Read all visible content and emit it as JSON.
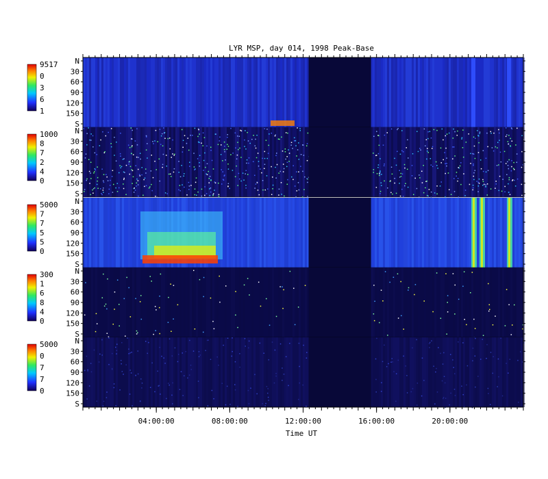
{
  "chart_data": {
    "type": "heatmap",
    "title": "LYR MSP, day 014, 1998 Peak-Base",
    "xlabel": "Time UT",
    "x_ticks": [
      "04:00:00",
      "08:00:00",
      "12:00:00",
      "16:00:00",
      "20:00:00"
    ],
    "x_tick_hours": [
      4,
      8,
      12,
      16,
      20
    ],
    "xlim_hours": [
      0,
      24
    ],
    "data_gap_hours": [
      12.3,
      15.7
    ],
    "y_ticks": [
      "N",
      "30",
      "60",
      "90",
      "120",
      "150",
      "S"
    ],
    "y_tick_values": [
      0,
      30,
      60,
      90,
      120,
      150,
      180
    ],
    "ylim": [
      0,
      180
    ],
    "panels": [
      {
        "colorbar_max": "9517",
        "colorbar_min": "1",
        "colorbar_mid": [
          "0",
          "3",
          "6"
        ],
        "intensity": "medium"
      },
      {
        "colorbar_max": "1000",
        "colorbar_min": "0",
        "colorbar_mid": [
          "8",
          "7",
          "2",
          "4"
        ],
        "intensity": "noisy"
      },
      {
        "colorbar_max": "5000",
        "colorbar_min": "0",
        "colorbar_mid": [
          "7",
          "7",
          "5",
          "5"
        ],
        "intensity": "strong"
      },
      {
        "colorbar_max": "300",
        "colorbar_min": "0",
        "colorbar_mid": [
          "1",
          "6",
          "8",
          "4"
        ],
        "intensity": "sparse"
      },
      {
        "colorbar_max": "5000",
        "colorbar_min": "0",
        "colorbar_mid": [
          "0",
          "7",
          "7"
        ],
        "intensity": "faint"
      }
    ],
    "grid": false,
    "legend": "colorbar-left",
    "colormap": "rainbow"
  }
}
